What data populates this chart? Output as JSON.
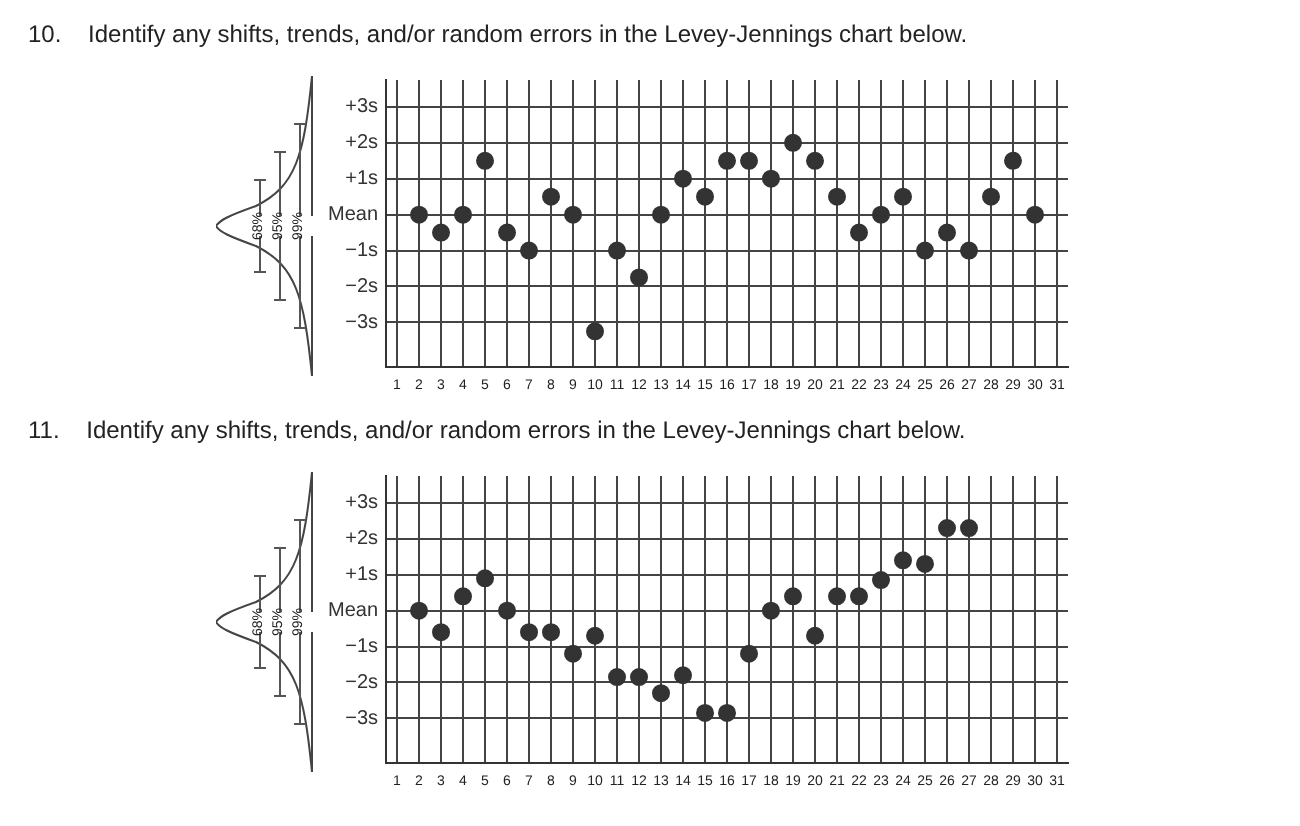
{
  "chart_data": [
    {
      "type": "scatter",
      "title": "10.    Identify any shifts, trends, and/or random errors in the Levey-Jennings chart below.",
      "annotations": [
        "68%",
        "95%",
        "99%"
      ],
      "marker": "circle",
      "grid": true,
      "legend": false,
      "x": [
        2,
        3,
        4,
        5,
        6,
        7,
        8,
        9,
        10,
        11,
        12,
        13,
        14,
        15,
        16,
        17,
        18,
        19,
        20,
        21,
        22,
        23,
        24,
        25,
        26,
        27,
        28,
        29,
        30
      ],
      "series": [
        {
          "color": "#333333",
          "values": [
            0,
            -0.5,
            0,
            1.5,
            -0.5,
            -1,
            0.5,
            0,
            -3.25,
            -1,
            -1.75,
            0,
            1,
            0.5,
            1.5,
            1.5,
            1,
            2,
            1.5,
            0.5,
            -0.5,
            0,
            0.5,
            -1,
            -0.5,
            -1,
            0.5,
            1.5,
            0
          ]
        }
      ],
      "xlim": [
        0.5,
        31.5
      ],
      "xticks": [
        1,
        2,
        3,
        4,
        5,
        6,
        7,
        8,
        9,
        10,
        11,
        12,
        13,
        14,
        15,
        16,
        17,
        18,
        19,
        20,
        21,
        22,
        23,
        24,
        25,
        26,
        27,
        28,
        29,
        30,
        31
      ],
      "ylim": [
        -4.25,
        3.75
      ],
      "yticks": [
        {
          "value": 3,
          "label": "+3s"
        },
        {
          "value": 2,
          "label": "+2s"
        },
        {
          "value": 1,
          "label": "+1s"
        },
        {
          "value": 0,
          "label": "Mean"
        },
        {
          "value": -1,
          "label": "−1s"
        },
        {
          "value": -2,
          "label": "−2s"
        },
        {
          "value": -3,
          "label": "−3s"
        }
      ]
    },
    {
      "type": "scatter",
      "title": "11.    Identify any shifts, trends, and/or random errors in the Levey-Jennings chart below.",
      "annotations": [
        "68%",
        "95%",
        "99%"
      ],
      "marker": "circle",
      "grid": true,
      "legend": false,
      "x": [
        2,
        3,
        4,
        5,
        6,
        7,
        8,
        9,
        10,
        11,
        12,
        13,
        14,
        15,
        16,
        17,
        18,
        19,
        20,
        21,
        22,
        23,
        24,
        25,
        26,
        27
      ],
      "series": [
        {
          "color": "#333333",
          "values": [
            0,
            -0.6,
            0.4,
            0.9,
            0,
            -0.6,
            -0.6,
            -1.2,
            -0.7,
            -1.85,
            -1.85,
            -2.3,
            -1.8,
            -2.85,
            -2.85,
            -1.2,
            0,
            0.4,
            -0.7,
            0.4,
            0.4,
            0.85,
            1.4,
            1.3,
            2.3,
            2.3
          ]
        }
      ],
      "xlim": [
        0.5,
        31.5
      ],
      "xticks": [
        1,
        2,
        3,
        4,
        5,
        6,
        7,
        8,
        9,
        10,
        11,
        12,
        13,
        14,
        15,
        16,
        17,
        18,
        19,
        20,
        21,
        22,
        23,
        24,
        25,
        26,
        27,
        28,
        29,
        30,
        31
      ],
      "ylim": [
        -4.25,
        3.75
      ],
      "yticks": [
        {
          "value": 3,
          "label": "+3s"
        },
        {
          "value": 2,
          "label": "+2s"
        },
        {
          "value": 1,
          "label": "+1s"
        },
        {
          "value": 0,
          "label": "Mean"
        },
        {
          "value": -1,
          "label": "−1s"
        },
        {
          "value": -2,
          "label": "−2s"
        },
        {
          "value": -3,
          "label": "−3s"
        }
      ]
    }
  ]
}
